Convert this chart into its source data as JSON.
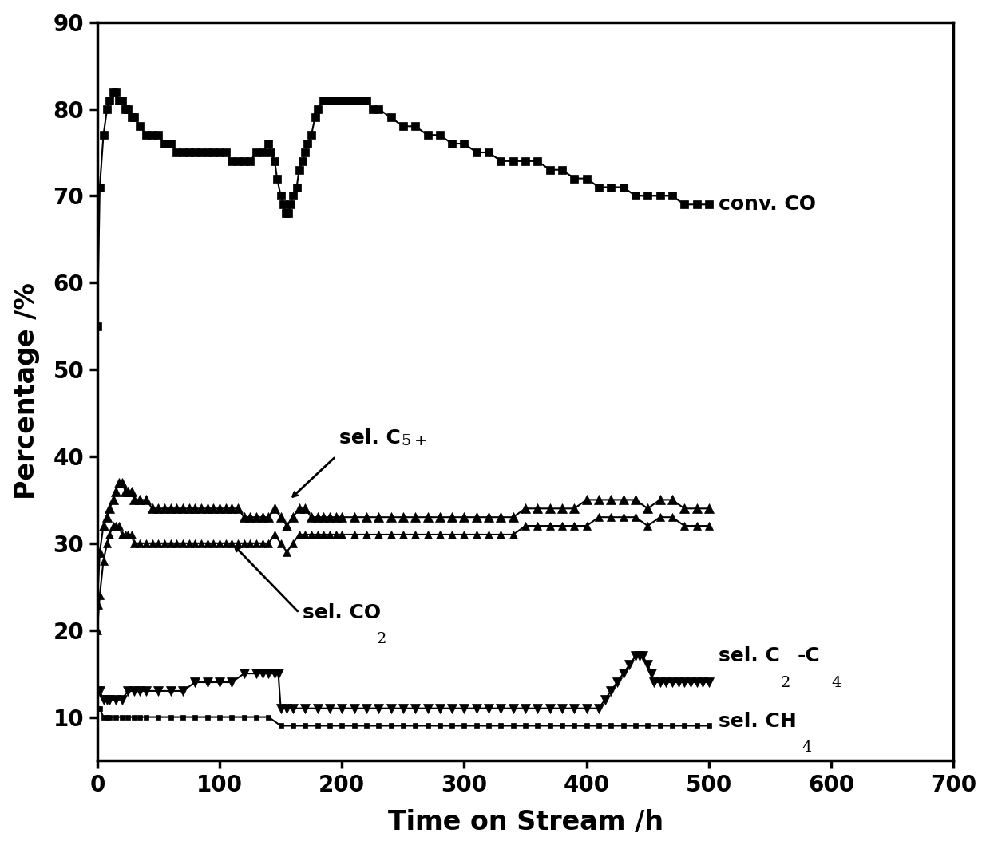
{
  "title": "",
  "xlabel": "Time on Stream /h",
  "ylabel": "Percentage /%",
  "xlim": [
    0,
    700
  ],
  "ylim": [
    5,
    90
  ],
  "xticks": [
    0,
    100,
    200,
    300,
    400,
    500,
    600,
    700
  ],
  "yticks": [
    10,
    20,
    30,
    40,
    50,
    60,
    70,
    80,
    90
  ],
  "background_color": "#ffffff",
  "conv_CO_x": [
    0,
    2,
    5,
    8,
    10,
    13,
    15,
    18,
    20,
    23,
    25,
    28,
    30,
    35,
    40,
    45,
    50,
    55,
    60,
    65,
    70,
    75,
    80,
    85,
    90,
    95,
    100,
    105,
    110,
    115,
    120,
    125,
    130,
    135,
    140,
    142,
    145,
    147,
    150,
    152,
    154,
    156,
    158,
    160,
    163,
    165,
    168,
    170,
    172,
    175,
    178,
    180,
    185,
    190,
    195,
    200,
    205,
    210,
    215,
    220,
    225,
    230,
    240,
    250,
    260,
    270,
    280,
    290,
    300,
    310,
    320,
    330,
    340,
    350,
    360,
    370,
    380,
    390,
    400,
    410,
    420,
    430,
    440,
    450,
    460,
    470,
    480,
    490,
    500
  ],
  "conv_CO_y": [
    55,
    71,
    77,
    80,
    81,
    82,
    82,
    81,
    81,
    80,
    80,
    79,
    79,
    78,
    77,
    77,
    77,
    76,
    76,
    75,
    75,
    75,
    75,
    75,
    75,
    75,
    75,
    75,
    74,
    74,
    74,
    74,
    75,
    75,
    76,
    75,
    74,
    72,
    70,
    69,
    68,
    68,
    69,
    70,
    71,
    73,
    74,
    75,
    76,
    77,
    79,
    80,
    81,
    81,
    81,
    81,
    81,
    81,
    81,
    81,
    80,
    80,
    79,
    78,
    78,
    77,
    77,
    76,
    76,
    75,
    75,
    74,
    74,
    74,
    74,
    73,
    73,
    72,
    72,
    71,
    71,
    71,
    70,
    70,
    70,
    70,
    69,
    69,
    69
  ],
  "sel_C5plus_x": [
    0,
    2,
    5,
    8,
    10,
    13,
    15,
    18,
    20,
    23,
    25,
    28,
    30,
    35,
    40,
    45,
    50,
    55,
    60,
    65,
    70,
    75,
    80,
    85,
    90,
    95,
    100,
    105,
    110,
    115,
    120,
    125,
    130,
    135,
    140,
    145,
    150,
    155,
    160,
    165,
    170,
    175,
    180,
    185,
    190,
    195,
    200,
    210,
    220,
    230,
    240,
    250,
    260,
    270,
    280,
    290,
    300,
    310,
    320,
    330,
    340,
    350,
    360,
    370,
    380,
    390,
    400,
    410,
    420,
    430,
    440,
    450,
    460,
    470,
    480,
    490,
    500
  ],
  "sel_C5plus_y": [
    23,
    29,
    32,
    33,
    34,
    35,
    36,
    37,
    37,
    36,
    36,
    36,
    35,
    35,
    35,
    34,
    34,
    34,
    34,
    34,
    34,
    34,
    34,
    34,
    34,
    34,
    34,
    34,
    34,
    34,
    33,
    33,
    33,
    33,
    33,
    34,
    33,
    32,
    33,
    34,
    34,
    33,
    33,
    33,
    33,
    33,
    33,
    33,
    33,
    33,
    33,
    33,
    33,
    33,
    33,
    33,
    33,
    33,
    33,
    33,
    33,
    34,
    34,
    34,
    34,
    34,
    35,
    35,
    35,
    35,
    35,
    34,
    35,
    35,
    34,
    34,
    34
  ],
  "sel_CO2_x": [
    0,
    2,
    5,
    8,
    10,
    13,
    15,
    18,
    20,
    23,
    25,
    28,
    30,
    35,
    40,
    45,
    50,
    55,
    60,
    65,
    70,
    75,
    80,
    85,
    90,
    95,
    100,
    105,
    110,
    115,
    120,
    125,
    130,
    135,
    140,
    145,
    150,
    155,
    160,
    165,
    170,
    175,
    180,
    185,
    190,
    195,
    200,
    210,
    220,
    230,
    240,
    250,
    260,
    270,
    280,
    290,
    300,
    310,
    320,
    330,
    340,
    350,
    360,
    370,
    380,
    390,
    400,
    410,
    420,
    430,
    440,
    450,
    460,
    470,
    480,
    490,
    500
  ],
  "sel_CO2_y": [
    20,
    24,
    28,
    30,
    31,
    32,
    32,
    32,
    31,
    31,
    31,
    31,
    30,
    30,
    30,
    30,
    30,
    30,
    30,
    30,
    30,
    30,
    30,
    30,
    30,
    30,
    30,
    30,
    30,
    30,
    30,
    30,
    30,
    30,
    30,
    31,
    30,
    29,
    30,
    31,
    31,
    31,
    31,
    31,
    31,
    31,
    31,
    31,
    31,
    31,
    31,
    31,
    31,
    31,
    31,
    31,
    31,
    31,
    31,
    31,
    31,
    32,
    32,
    32,
    32,
    32,
    32,
    33,
    33,
    33,
    33,
    32,
    33,
    33,
    32,
    32,
    32
  ],
  "sel_C2C4_x": [
    0,
    2,
    5,
    8,
    10,
    15,
    20,
    25,
    30,
    35,
    40,
    50,
    60,
    70,
    80,
    90,
    100,
    110,
    120,
    130,
    135,
    140,
    145,
    148,
    150,
    155,
    160,
    170,
    180,
    190,
    200,
    210,
    220,
    230,
    240,
    250,
    260,
    270,
    280,
    290,
    300,
    310,
    320,
    330,
    340,
    350,
    360,
    370,
    380,
    390,
    400,
    410,
    415,
    420,
    425,
    430,
    435,
    440,
    443,
    446,
    450,
    453,
    455,
    460,
    465,
    470,
    475,
    480,
    485,
    490,
    495,
    500
  ],
  "sel_C2C4_y": [
    13,
    13,
    12,
    12,
    12,
    12,
    12,
    13,
    13,
    13,
    13,
    13,
    13,
    13,
    14,
    14,
    14,
    14,
    15,
    15,
    15,
    15,
    15,
    15,
    11,
    11,
    11,
    11,
    11,
    11,
    11,
    11,
    11,
    11,
    11,
    11,
    11,
    11,
    11,
    11,
    11,
    11,
    11,
    11,
    11,
    11,
    11,
    11,
    11,
    11,
    11,
    11,
    12,
    13,
    14,
    15,
    16,
    17,
    17,
    17,
    16,
    15,
    14,
    14,
    14,
    14,
    14,
    14,
    14,
    14,
    14,
    14
  ],
  "sel_CH4_x": [
    0,
    2,
    5,
    8,
    10,
    15,
    20,
    25,
    30,
    35,
    40,
    50,
    60,
    70,
    80,
    90,
    100,
    110,
    120,
    130,
    140,
    150,
    160,
    170,
    180,
    190,
    200,
    210,
    220,
    230,
    240,
    250,
    260,
    270,
    280,
    290,
    300,
    310,
    320,
    330,
    340,
    350,
    360,
    370,
    380,
    390,
    400,
    410,
    420,
    430,
    440,
    450,
    460,
    470,
    480,
    490,
    500
  ],
  "sel_CH4_y": [
    11,
    11,
    10,
    10,
    10,
    10,
    10,
    10,
    10,
    10,
    10,
    10,
    10,
    10,
    10,
    10,
    10,
    10,
    10,
    10,
    10,
    9,
    9,
    9,
    9,
    9,
    9,
    9,
    9,
    9,
    9,
    9,
    9,
    9,
    9,
    9,
    9,
    9,
    9,
    9,
    9,
    9,
    9,
    9,
    9,
    9,
    9,
    9,
    9,
    9,
    9,
    9,
    9,
    9,
    9,
    9,
    9
  ]
}
